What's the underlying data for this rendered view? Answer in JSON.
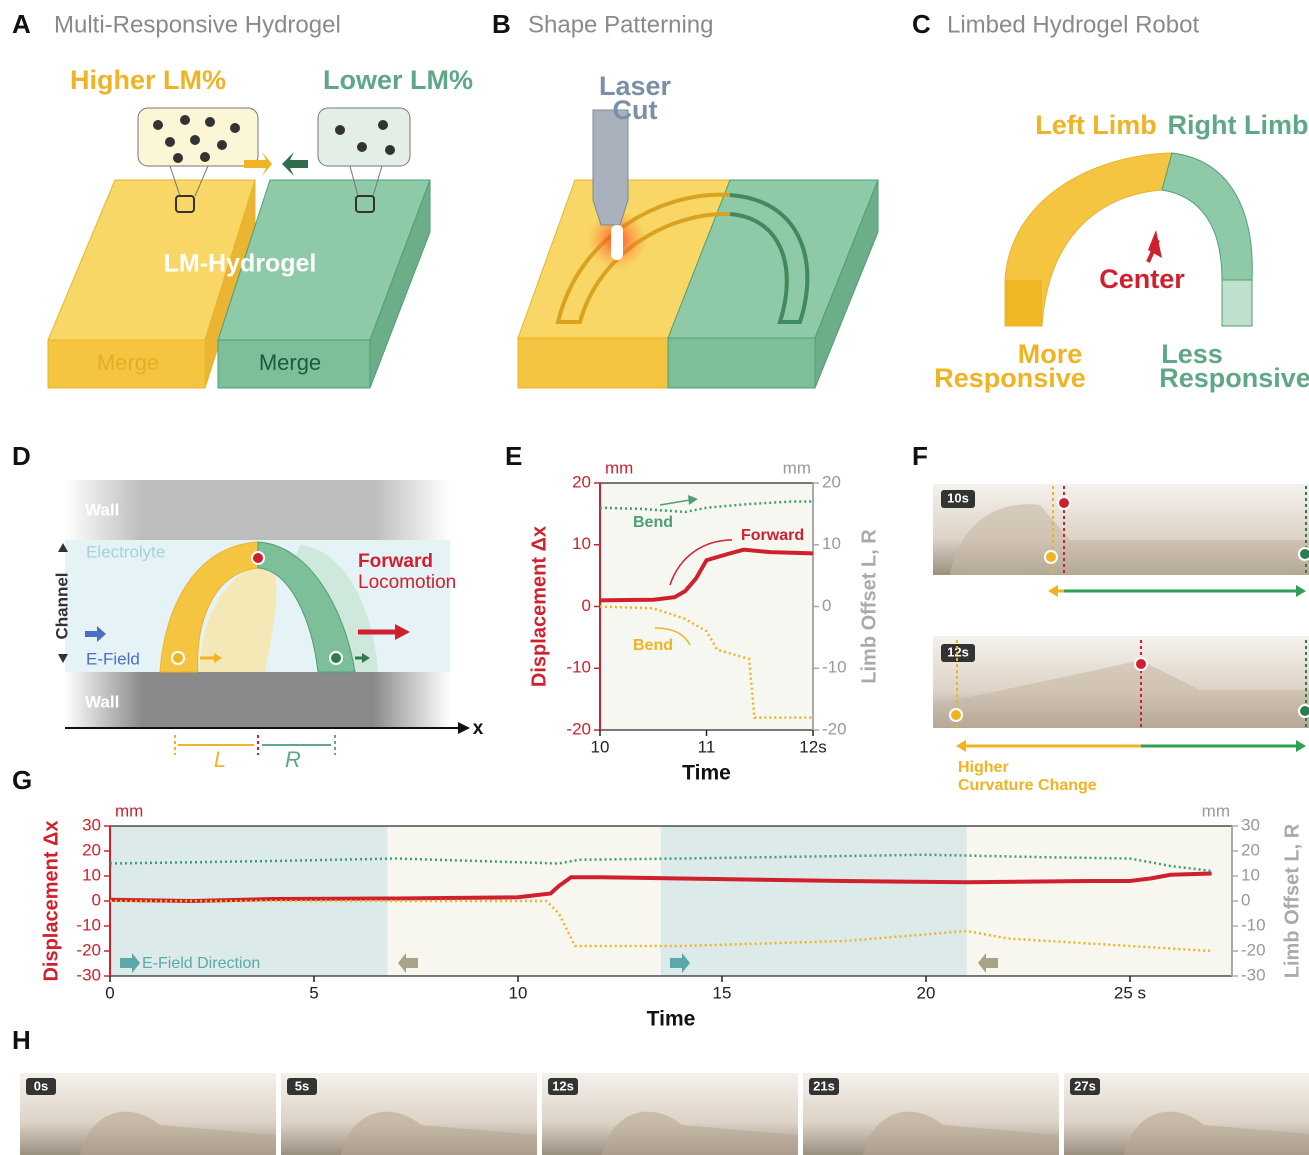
{
  "panels": {
    "a": {
      "label": "A",
      "title": "Multi-Responsive Hydrogel",
      "higher": "Higher LM%",
      "lower": "Lower LM%",
      "material": "LM-Hydrogel",
      "merge_left": "Merge",
      "merge_right": "Merge"
    },
    "b": {
      "label": "B",
      "title": "Shape Patterning",
      "laser": [
        "Laser",
        "Cut"
      ]
    },
    "c": {
      "label": "C",
      "title": "Limbed Hydrogel Robot",
      "left_limb": "Left Limb",
      "right_limb": "Right Limb",
      "center": "Center",
      "more": [
        "More",
        "Responsive"
      ],
      "less": [
        "Less",
        "Responsive"
      ]
    },
    "d": {
      "label": "D",
      "wall_top": "Wall",
      "electrolyte": "Electrolyte",
      "channel": "Channel",
      "efield": "E-Field",
      "forward": [
        "Forward",
        "Locomotion"
      ],
      "wall_bottom": "Wall",
      "x_axis": "x",
      "left": "L",
      "right": "R"
    },
    "e": {
      "label": "E"
    },
    "f": {
      "label": "F",
      "frames": [
        "10s",
        "12s"
      ],
      "note": [
        "Higher",
        "Curvature Change"
      ]
    },
    "g": {
      "label": "G"
    },
    "h": {
      "label": "H",
      "frames": [
        "0s",
        "5s",
        "12s",
        "21s",
        "27s"
      ]
    }
  },
  "chart_data": [
    {
      "type": "line",
      "xlabel": "Time",
      "ylabel": "Displacement Δx",
      "y2label": "Limb Offset L, R",
      "y_unit": "mm",
      "y2_unit": "mm",
      "xlim": [
        10,
        12
      ],
      "xticks": [
        10,
        11,
        {
          "value": 12,
          "label": "12s"
        }
      ],
      "ylim": [
        -20,
        20
      ],
      "yticks": [
        -20,
        -10,
        0,
        10,
        20
      ],
      "y2lim": [
        -20,
        20
      ],
      "y2ticks": [
        -20,
        -10,
        0,
        10,
        20
      ],
      "annotations": [
        "Bend",
        "Forward",
        "Bend"
      ],
      "series": [
        {
          "color": "#d0202e",
          "x": [
            10,
            10.5,
            10.7,
            10.8,
            10.9,
            11.0,
            11.2,
            11.35,
            11.6,
            12
          ],
          "values": [
            1,
            1.1,
            1.5,
            2.5,
            4.5,
            7.5,
            8.5,
            9.2,
            8.8,
            8.6
          ]
        },
        {
          "color": "#3f9e6e",
          "style": "dotted",
          "axis": "y2",
          "x": [
            10,
            10.4,
            10.8,
            11,
            11.4,
            11.8,
            12
          ],
          "values": [
            16,
            15.8,
            15.3,
            16,
            16.6,
            17,
            17
          ]
        },
        {
          "color": "#f0b323",
          "style": "dotted",
          "axis": "y2",
          "x": [
            10,
            10.5,
            10.8,
            11,
            11.1,
            11.3,
            11.4,
            11.45,
            12
          ],
          "values": [
            0,
            -0.3,
            -2,
            -4,
            -7,
            -8,
            -8.5,
            -18,
            -18
          ]
        }
      ]
    },
    {
      "type": "line",
      "xlabel": "Time",
      "ylabel": "Displacement Δx",
      "y2label": "Limb Offset L, R",
      "y_unit": "mm",
      "y2_unit": "mm",
      "xlim": [
        0,
        27.5
      ],
      "xticks": [
        0,
        5,
        10,
        15,
        20,
        {
          "value": 25,
          "label": "25 s"
        }
      ],
      "ylim": [
        -30,
        30
      ],
      "yticks": [
        -30,
        -20,
        -10,
        0,
        10,
        20,
        30
      ],
      "y2lim": [
        -30,
        30
      ],
      "y2ticks": [
        -30,
        -20,
        -10,
        0,
        10,
        20,
        30
      ],
      "annotations": [
        "E-Field Direction"
      ],
      "regions": [
        {
          "start": 0,
          "end": 6.8,
          "color": "#dcebea"
        },
        {
          "start": 6.8,
          "end": 13.5,
          "color": "#f7f7f0"
        },
        {
          "start": 13.5,
          "end": 21,
          "color": "#dcebea"
        },
        {
          "start": 21,
          "end": 27.5,
          "color": "#f7f7f0"
        }
      ],
      "series": [
        {
          "color": "#d0202e",
          "x": [
            0,
            2,
            4,
            7,
            10,
            10.8,
            11,
            11.3,
            12,
            14,
            18,
            21,
            24,
            25,
            25.5,
            26,
            27
          ],
          "values": [
            0.5,
            0,
            0.8,
            1,
            1.5,
            3,
            6,
            9.5,
            9.5,
            9,
            8,
            7.5,
            8,
            8,
            9,
            10.5,
            11
          ]
        },
        {
          "color": "#3f9e6e",
          "style": "dotted",
          "axis": "y2",
          "x": [
            0,
            4,
            7,
            11,
            11.5,
            14,
            20,
            23,
            25,
            26,
            27
          ],
          "values": [
            15,
            16,
            17,
            15,
            16.5,
            17,
            18.5,
            17.5,
            17,
            14,
            12
          ]
        },
        {
          "color": "#f0b323",
          "style": "dotted",
          "axis": "y2",
          "x": [
            0,
            10.7,
            11,
            11.4,
            14,
            18,
            21,
            22,
            25,
            27
          ],
          "values": [
            0,
            0,
            -5,
            -18,
            -18,
            -16,
            -12,
            -15,
            -18,
            -20
          ]
        }
      ]
    }
  ]
}
